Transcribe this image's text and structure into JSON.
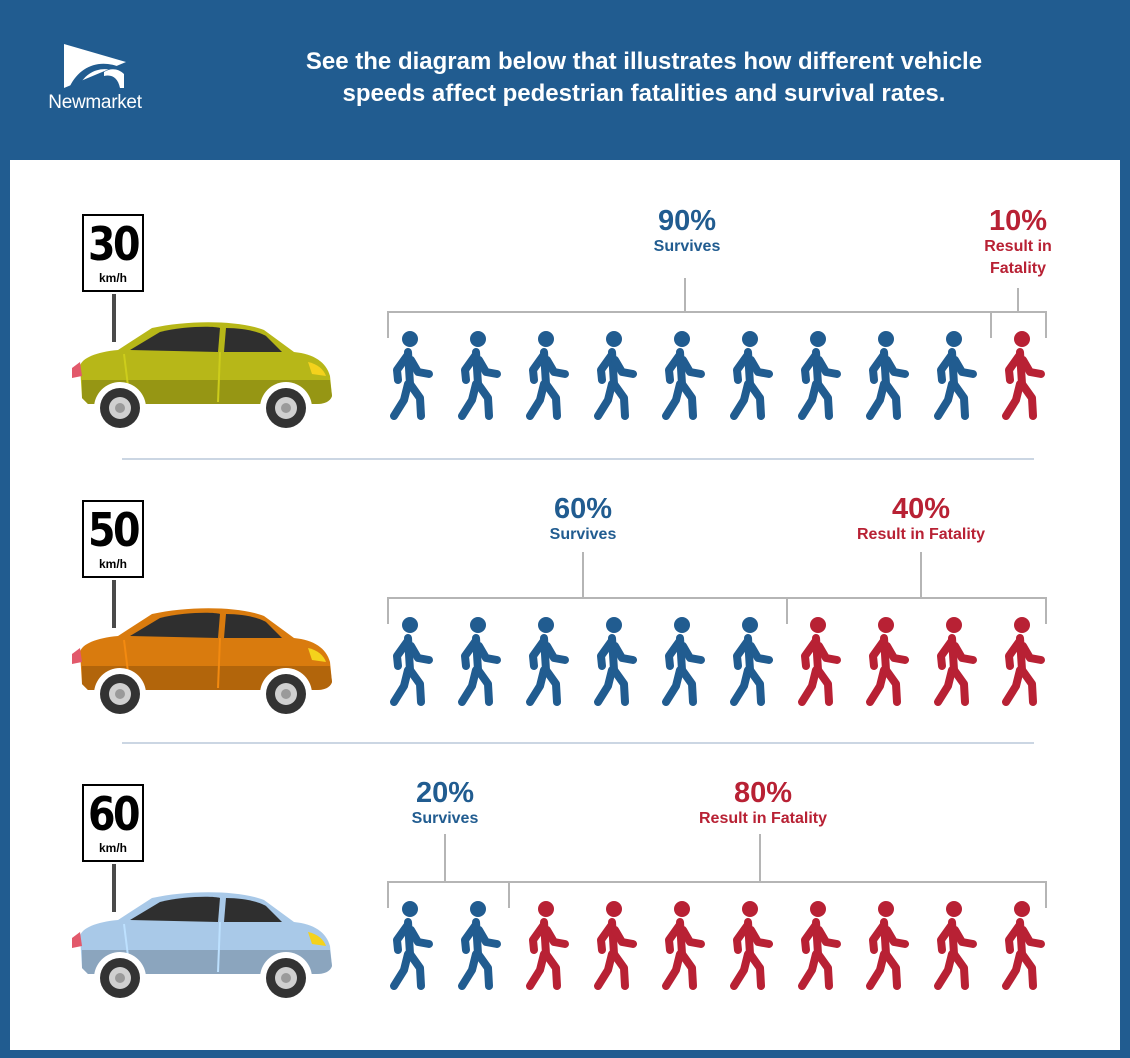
{
  "header": {
    "logo_text": "Newmarket",
    "title_line1": "See the diagram below that illustrates how different vehicle",
    "title_line2": "speeds affect pedestrian fatalities and survival rates."
  },
  "colors": {
    "header_bg": "#215c90",
    "survive": "#215c90",
    "fatal": "#b82134",
    "bracket": "#b5b5b5",
    "divider": "#cbd6e3"
  },
  "rows": [
    {
      "speed": "30",
      "unit": "km/h",
      "car_color": "#b7b718",
      "survive_pct": "90%",
      "survive_text": "Survives",
      "fatal_pct": "10%",
      "fatal_text_line1": "Result in",
      "fatal_text_line2": "Fatality",
      "survivors": 9,
      "fatalities": 1
    },
    {
      "speed": "50",
      "unit": "km/h",
      "car_color": "#d97b0e",
      "survive_pct": "60%",
      "survive_text": "Survives",
      "fatal_pct": "40%",
      "fatal_text_line1": "Result in Fatality",
      "fatal_text_line2": "",
      "survivors": 6,
      "fatalities": 4
    },
    {
      "speed": "60",
      "unit": "km/h",
      "car_color": "#a9c9e8",
      "survive_pct": "20%",
      "survive_text": "Survives",
      "fatal_pct": "80%",
      "fatal_text_line1": "Result in Fatality",
      "fatal_text_line2": "",
      "survivors": 2,
      "fatalities": 8
    }
  ]
}
